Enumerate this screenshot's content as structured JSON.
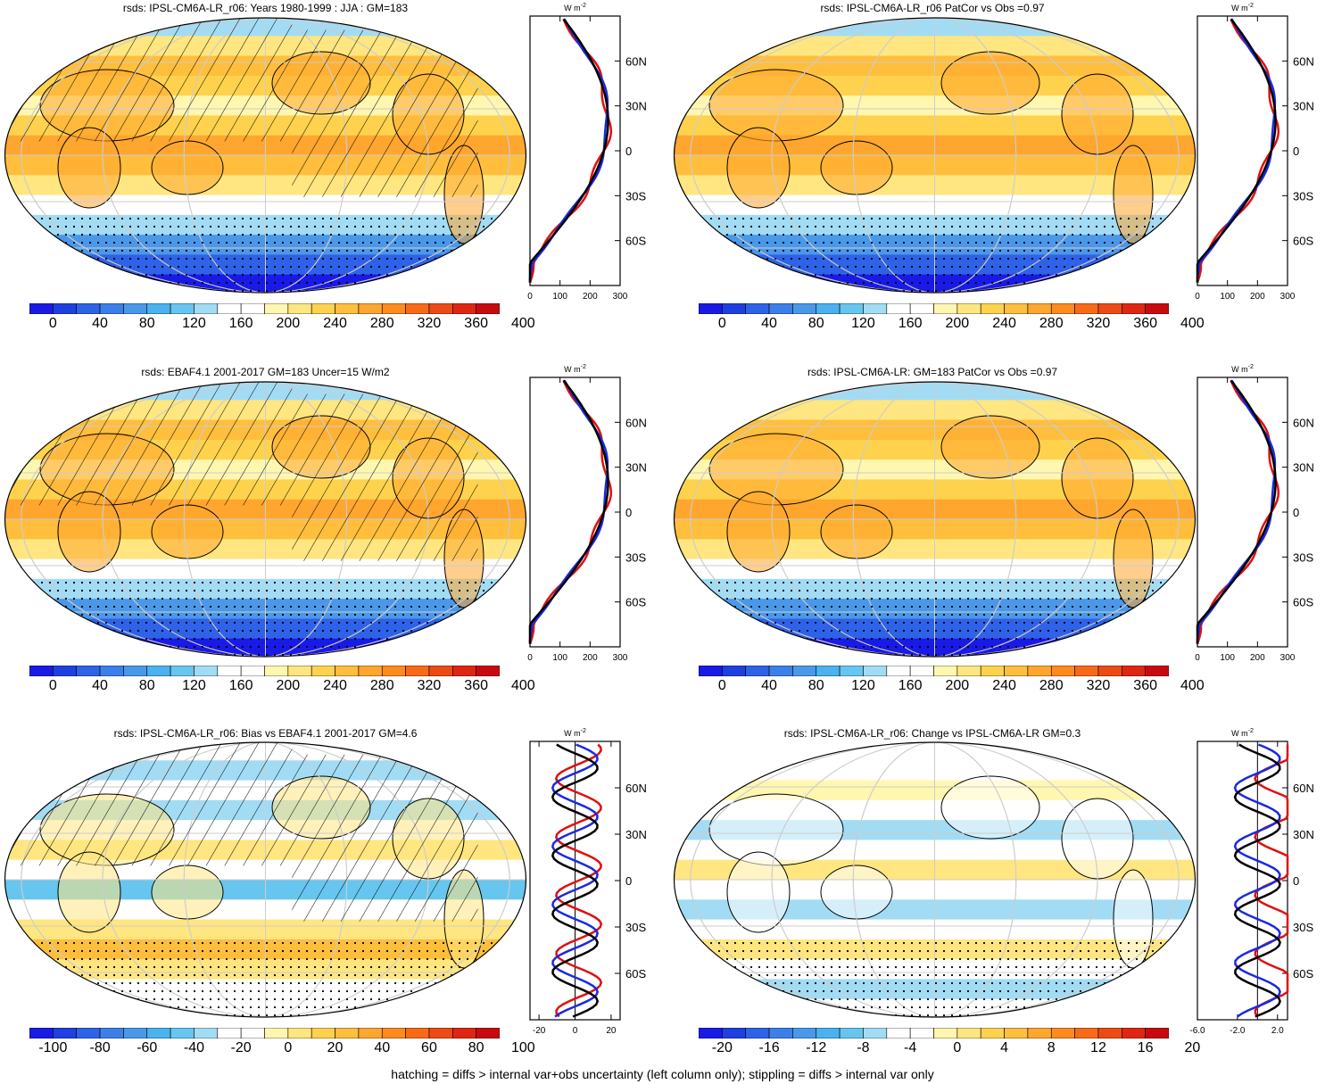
{
  "footer_note": "hatching = diffs > internal var+obs uncertainty (left column only); stippling = diffs > internal var only",
  "palette": {
    "absolute": [
      "#1a1ae6",
      "#1e40e0",
      "#2e62e8",
      "#3c7fe8",
      "#4a98ea",
      "#49b2ef",
      "#66c6f0",
      "#a2dcf4",
      "#ffffff",
      "#ffffff",
      "#fff7b0",
      "#ffe680",
      "#ffd24d",
      "#ffbe3c",
      "#ffa62e",
      "#ff8a1e",
      "#f86a18",
      "#ee4a14",
      "#e02612",
      "#c80a10"
    ],
    "difference": [
      "#1a1ae6",
      "#1e40e0",
      "#2e62e8",
      "#3c7fe8",
      "#4a98ea",
      "#49b2ef",
      "#66c6f0",
      "#a2dcf4",
      "#ffffff",
      "#ffffff",
      "#fff7b0",
      "#ffe680",
      "#ffd24d",
      "#ffbe3c",
      "#ffa62e",
      "#ff8a1e",
      "#f86a18",
      "#ee4a14",
      "#e02612",
      "#c80a10"
    ]
  },
  "line_colors": {
    "obs": "#e01010",
    "model": "#1a2ae0",
    "ens": "#000000"
  },
  "lat_labels": [
    "60N",
    "30N",
    "0",
    "30S",
    "60S"
  ],
  "units_label": "W m",
  "units_exp": "-2",
  "panels": [
    {
      "title": "rsds: IPSL-CM6A-LR_r06: Years 1980-1999 : JJA : GM=183",
      "cbar_palette": "absolute",
      "cbar_labels": [
        "0",
        "40",
        "80",
        "120",
        "160",
        "200",
        "240",
        "280",
        "320",
        "360",
        "400"
      ],
      "zonal_ticks": [
        "0",
        "100",
        "200",
        "300"
      ],
      "zonal_range": [
        0,
        300
      ],
      "hatch": true
    },
    {
      "title": "rsds: IPSL-CM6A-LR_r06 PatCor vs Obs =0.97",
      "cbar_palette": "absolute",
      "cbar_labels": [
        "0",
        "40",
        "80",
        "120",
        "160",
        "200",
        "240",
        "280",
        "320",
        "360",
        "400"
      ],
      "zonal_ticks": [
        "0",
        "100",
        "200",
        "300"
      ],
      "zonal_range": [
        0,
        300
      ],
      "hatch": false
    },
    {
      "title": "rsds: EBAF4.1 2001-2017 GM=183 Uncer=15 W/m2",
      "cbar_palette": "absolute",
      "cbar_labels": [
        "0",
        "40",
        "80",
        "120",
        "160",
        "200",
        "240",
        "280",
        "320",
        "360",
        "400"
      ],
      "zonal_ticks": [
        "0",
        "100",
        "200",
        "300"
      ],
      "zonal_range": [
        0,
        300
      ],
      "hatch": true
    },
    {
      "title": "rsds: IPSL-CM6A-LR: GM=183 PatCor vs Obs =0.97",
      "cbar_palette": "absolute",
      "cbar_labels": [
        "0",
        "40",
        "80",
        "120",
        "160",
        "200",
        "240",
        "280",
        "320",
        "360",
        "400"
      ],
      "zonal_ticks": [
        "0",
        "100",
        "200",
        "300"
      ],
      "zonal_range": [
        0,
        300
      ],
      "hatch": false
    },
    {
      "title": "rsds: IPSL-CM6A-LR_r06: Bias vs EBAF4.1 2001-2017 GM=4.6",
      "cbar_palette": "difference",
      "cbar_labels": [
        "-100",
        "-80",
        "-60",
        "-40",
        "-20",
        "0",
        "20",
        "40",
        "60",
        "80",
        "100"
      ],
      "zonal_ticks": [
        "-20",
        "0",
        "20"
      ],
      "zonal_range": [
        -25,
        25
      ],
      "hatch": true
    },
    {
      "title": "rsds: IPSL-CM6A-LR_r06: Change vs IPSL-CM6A-LR GM=0.3",
      "cbar_palette": "difference",
      "cbar_labels": [
        "-20",
        "-16",
        "-12",
        "-8",
        "-4",
        "0",
        "4",
        "8",
        "12",
        "16",
        "20"
      ],
      "zonal_ticks": [
        "-6.0",
        "-2.0",
        "2.0"
      ],
      "zonal_range": [
        -6,
        3
      ],
      "hatch": false
    }
  ]
}
